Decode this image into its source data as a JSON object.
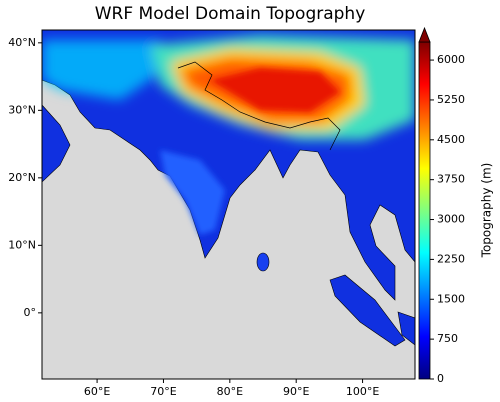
{
  "title": "WRF Model Domain Topography",
  "map": {
    "xlim": [
      51.7,
      107.9
    ],
    "ylim": [
      -9.8,
      41.9
    ],
    "xticks": [
      {
        "value": 60,
        "label": "60°E"
      },
      {
        "value": 70,
        "label": "70°E"
      },
      {
        "value": 80,
        "label": "80°E"
      },
      {
        "value": 90,
        "label": "90°E"
      },
      {
        "value": 100,
        "label": "100°E"
      }
    ],
    "yticks": [
      {
        "value": 0,
        "label": "0°"
      },
      {
        "value": 10,
        "label": "10°N"
      },
      {
        "value": 20,
        "label": "20°N"
      },
      {
        "value": 30,
        "label": "30°N"
      },
      {
        "value": 40,
        "label": "40°N"
      }
    ]
  },
  "colorbar": {
    "label": "Topography (m)",
    "lim": [
      0,
      6340
    ],
    "ticks": [
      0,
      750,
      1500,
      2250,
      3000,
      3750,
      4500,
      5250,
      6000
    ],
    "extend": "max"
  }
}
